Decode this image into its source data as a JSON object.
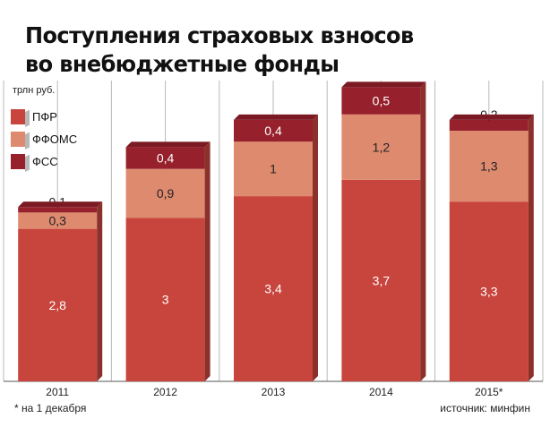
{
  "title": "Поступления страховых взносов во внебюджетные фонды",
  "unit": "трлн руб.",
  "footnote": "* на 1 декабря",
  "source": "источник: минфин",
  "colors": {
    "ПФР": "#c8453d",
    "ФФОМС": "#de8a6f",
    "ФСС": "#96202b",
    "grid": "#b9b9b9",
    "background": "#ffffff"
  },
  "chart_data": {
    "type": "bar",
    "stacked": true,
    "unit": "трлн руб.",
    "categories": [
      "2011",
      "2012",
      "2013",
      "2014",
      "2015*"
    ],
    "series": [
      {
        "name": "ПФР",
        "values": [
          2.8,
          3,
          3.4,
          3.7,
          3.3
        ],
        "labels": [
          "2,8",
          "3",
          "3,4",
          "3,7",
          "3,3"
        ],
        "color": "#c8453d"
      },
      {
        "name": "ФФОМС",
        "values": [
          0.3,
          0.9,
          1,
          1.2,
          1.3
        ],
        "labels": [
          "0,3",
          "0,9",
          "1",
          "1,2",
          "1,3"
        ],
        "color": "#de8a6f"
      },
      {
        "name": "ФСС",
        "values": [
          0.1,
          0.4,
          0.4,
          0.5,
          0.2
        ],
        "labels": [
          "0,1",
          "0,4",
          "0,4",
          "0,5",
          "0,2"
        ],
        "color": "#96202b"
      }
    ],
    "ylim": [
      0,
      5.4
    ],
    "legend": "top-left",
    "grid": "vertical"
  }
}
